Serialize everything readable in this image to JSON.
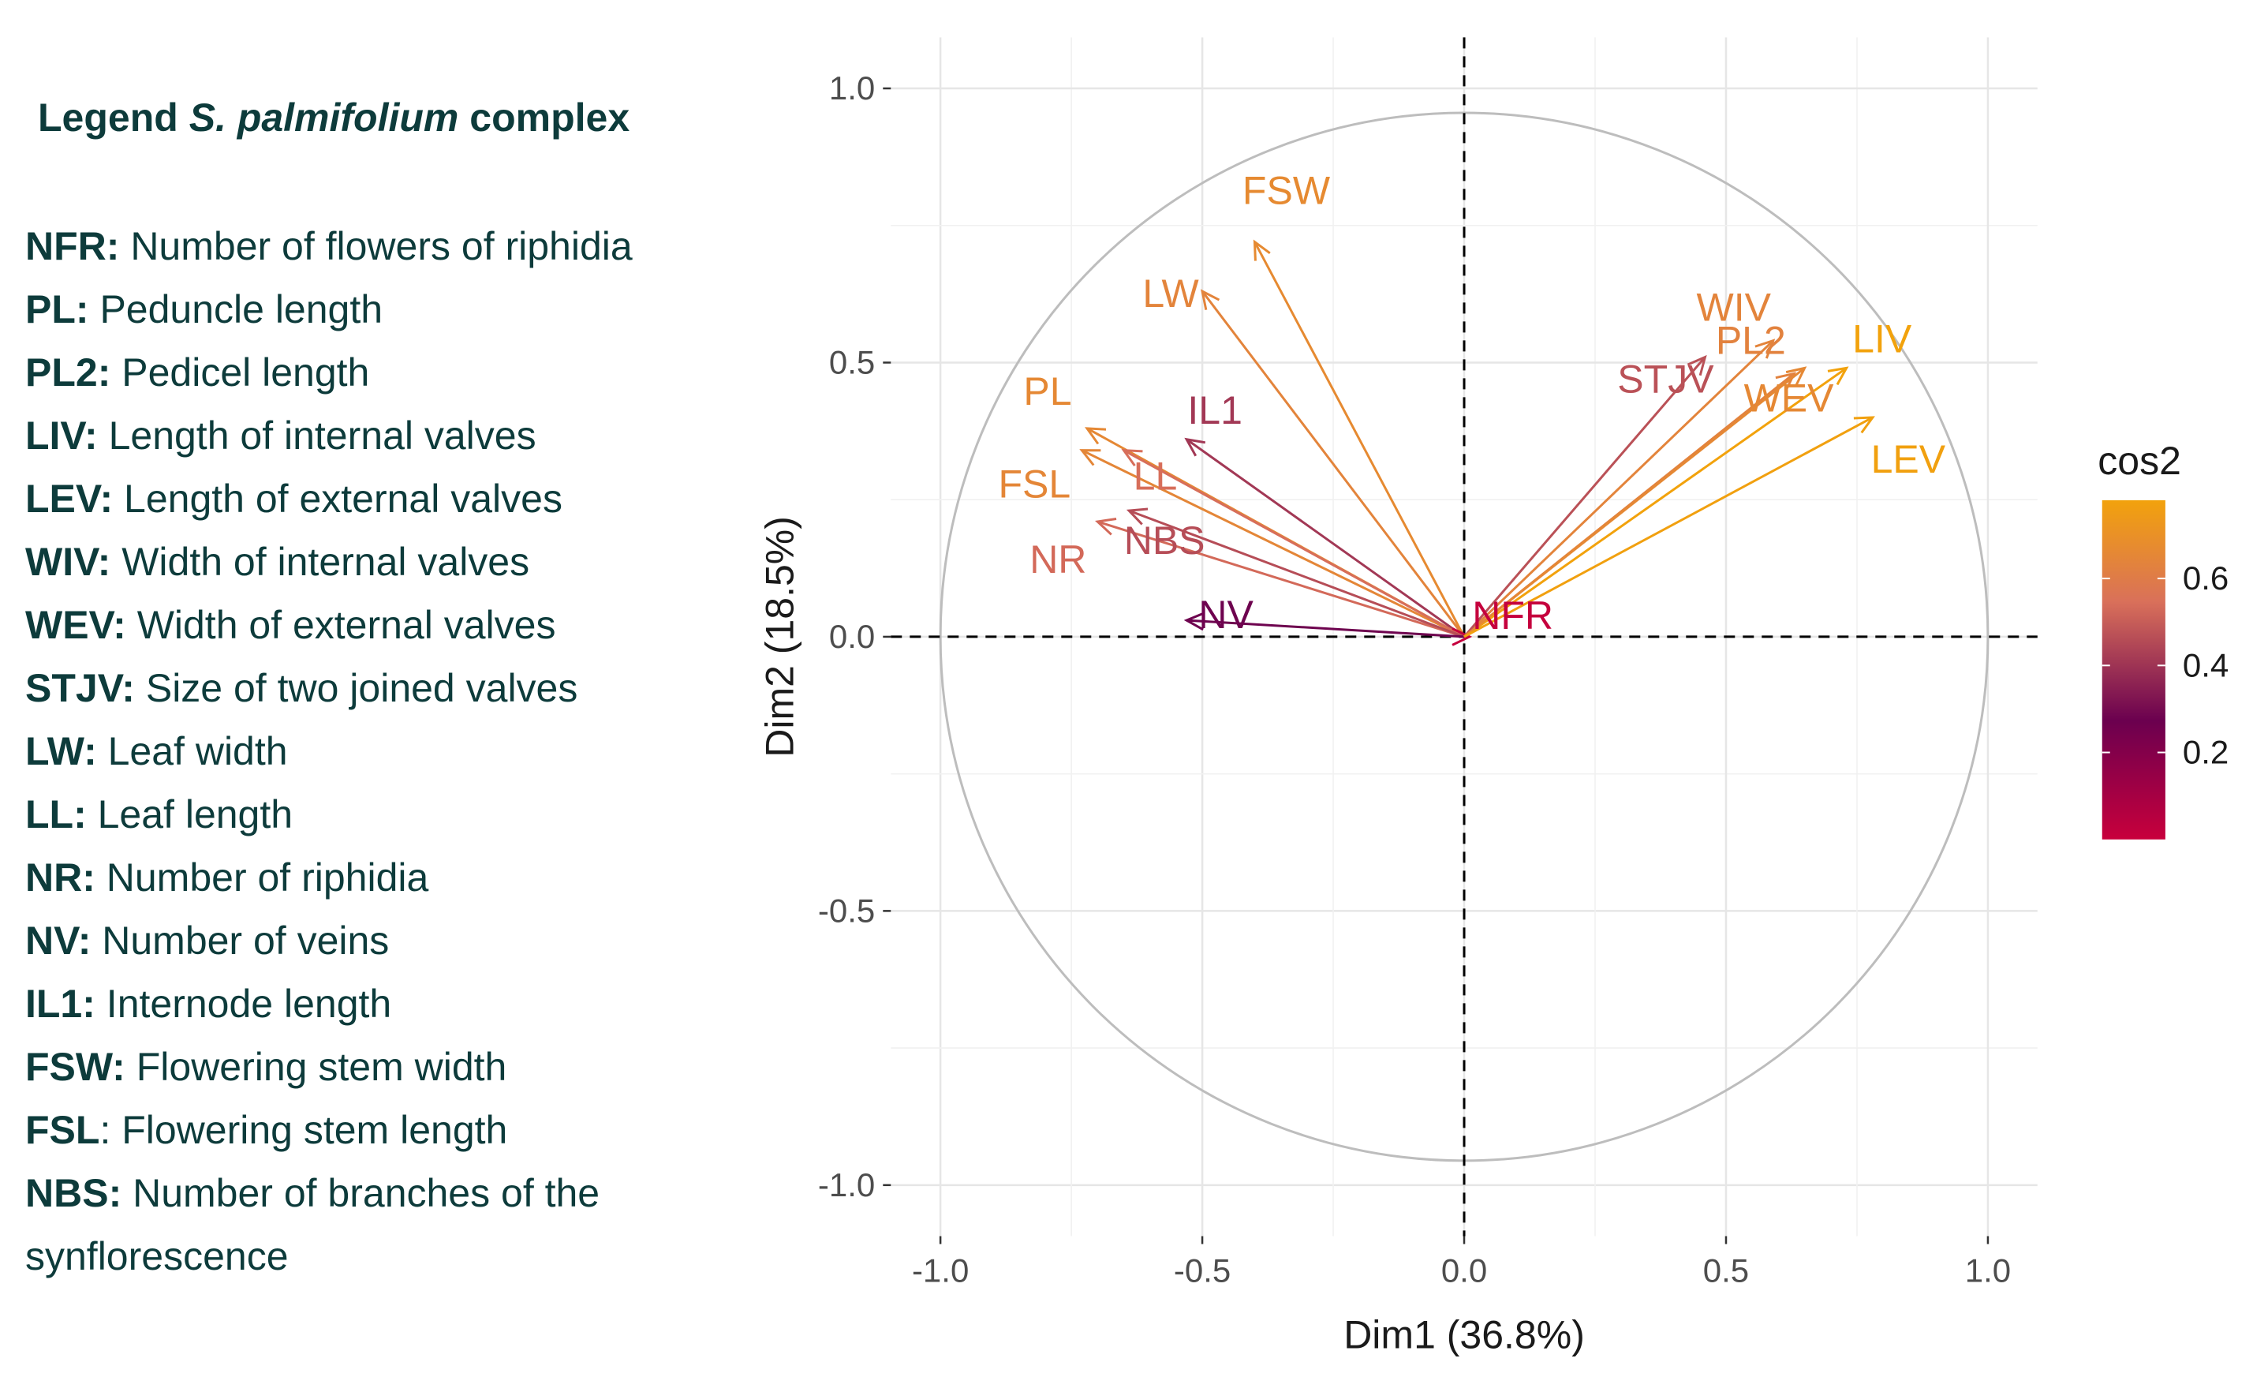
{
  "legend": {
    "title_prefix": "Legend ",
    "title_italic": "S. palmifolium",
    "title_suffix": " complex",
    "entries": [
      {
        "abbr": "NFR:",
        "desc": " Number of flowers of riphidia"
      },
      {
        "abbr": "PL:",
        "desc": " Peduncle length"
      },
      {
        "abbr": "PL2:",
        "desc": " Pedicel length"
      },
      {
        "abbr": "LIV:",
        "desc": " Length of internal valves"
      },
      {
        "abbr": "LEV:",
        "desc": " Length of external valves"
      },
      {
        "abbr": "WIV:",
        "desc": " Width of internal valves"
      },
      {
        "abbr": "WEV:",
        "desc": " Width of external valves"
      },
      {
        "abbr": "STJV:",
        "desc": " Size of two joined valves"
      },
      {
        "abbr": "LW:",
        "desc": " Leaf width"
      },
      {
        "abbr": "LL:",
        "desc": " Leaf length"
      },
      {
        "abbr": "NR:",
        "desc": " Number of riphidia"
      },
      {
        "abbr": "NV:",
        "desc": " Number of veins"
      },
      {
        "abbr": "IL1:",
        "desc": " Internode length"
      },
      {
        "abbr": "FSW:",
        "desc": " Flowering stem width"
      },
      {
        "abbr": "FSL",
        "desc": ": Flowering stem length"
      },
      {
        "abbr": "NBS:",
        "desc": " Number of branches of the synflorescence"
      }
    ]
  },
  "chart_data": {
    "type": "scatter",
    "subtype": "pca-variable-correlation-circle",
    "xlabel": "Dim1 (36.8%)",
    "ylabel": "Dim2 (18.5%)",
    "xlim": [
      -1.0,
      1.0
    ],
    "ylim": [
      -1.0,
      1.0
    ],
    "x_ticks": [
      -1.0,
      -0.5,
      0.0,
      0.5,
      1.0
    ],
    "y_ticks": [
      -1.0,
      -0.5,
      0.0,
      0.5,
      1.0
    ],
    "x_tick_labels": [
      "-1.0",
      "-0.5",
      "0.0",
      "0.5",
      "1.0"
    ],
    "y_tick_labels": [
      "-1.0",
      "-0.5",
      "0.0",
      "0.5",
      "1.0"
    ],
    "grid": true,
    "unit_circle": true,
    "reference_lines": "dashed at x=0 and y=0",
    "colorbar": {
      "title": "cos2",
      "ticks": [
        0.2,
        0.4,
        0.6
      ],
      "tick_labels": [
        "0.2",
        "0.4",
        "0.6"
      ],
      "range": [
        0.0,
        0.78
      ],
      "colors": [
        "#c8003c",
        "#6b004f",
        "#d9705a",
        "#f2a20c"
      ],
      "position": "right"
    },
    "variables": [
      {
        "name": "FSW",
        "x": -0.4,
        "y": 0.72,
        "cos2": 0.67
      },
      {
        "name": "LW",
        "x": -0.5,
        "y": 0.63,
        "cos2": 0.64
      },
      {
        "name": "PL",
        "x": -0.72,
        "y": 0.38,
        "cos2": 0.66
      },
      {
        "name": "IL1",
        "x": -0.53,
        "y": 0.36,
        "cos2": 0.41
      },
      {
        "name": "FSL",
        "x": -0.73,
        "y": 0.34,
        "cos2": 0.65
      },
      {
        "name": "LL",
        "x": -0.65,
        "y": 0.34,
        "cos2": 0.54
      },
      {
        "name": "NR",
        "x": -0.7,
        "y": 0.21,
        "cos2": 0.53
      },
      {
        "name": "NBS",
        "x": -0.64,
        "y": 0.23,
        "cos2": 0.46
      },
      {
        "name": "NV",
        "x": -0.53,
        "y": 0.03,
        "cos2": 0.28
      },
      {
        "name": "NFR",
        "x": 0.01,
        "y": 0.0,
        "cos2": 0.01
      },
      {
        "name": "PL2",
        "x": 0.63,
        "y": 0.48,
        "cos2": 0.63
      },
      {
        "name": "WIV",
        "x": 0.59,
        "y": 0.54,
        "cos2": 0.64
      },
      {
        "name": "STJV",
        "x": 0.46,
        "y": 0.51,
        "cos2": 0.47
      },
      {
        "name": "LIV",
        "x": 0.73,
        "y": 0.49,
        "cos2": 0.78
      },
      {
        "name": "WEV",
        "x": 0.65,
        "y": 0.49,
        "cos2": 0.66
      },
      {
        "name": "LEV",
        "x": 0.78,
        "y": 0.4,
        "cos2": 0.77
      }
    ]
  }
}
